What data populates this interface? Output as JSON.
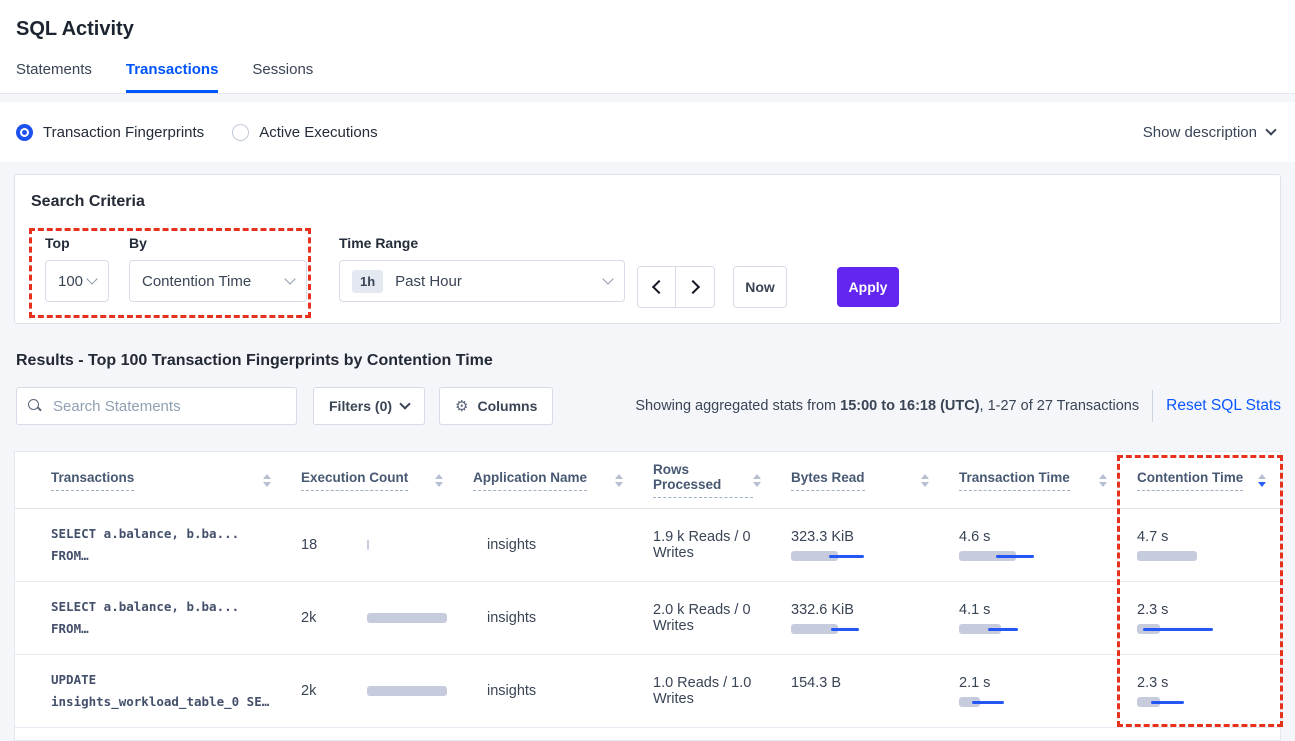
{
  "page_title": "SQL Activity",
  "tabs": [
    {
      "label": "Statements",
      "active": false
    },
    {
      "label": "Transactions",
      "active": true
    },
    {
      "label": "Sessions",
      "active": false
    }
  ],
  "view_toggle": {
    "options": [
      {
        "label": "Transaction Fingerprints",
        "selected": true
      },
      {
        "label": "Active Executions",
        "selected": false
      }
    ],
    "show_description_label": "Show description"
  },
  "search_criteria": {
    "heading": "Search Criteria",
    "top": {
      "label": "Top",
      "value": "100"
    },
    "by": {
      "label": "By",
      "value": "Contention Time"
    },
    "time_range": {
      "label": "Time Range",
      "badge": "1h",
      "value": "Past Hour"
    },
    "now_label": "Now",
    "apply_label": "Apply"
  },
  "results": {
    "heading": "Results - Top 100 Transaction Fingerprints by Contention Time",
    "search_placeholder": "Search Statements",
    "filters_label": "Filters (0)",
    "columns_label": "Columns",
    "stats_prefix": "Showing aggregated stats from ",
    "stats_range": "15:00 to 16:18 (UTC)",
    "stats_suffix": ", 1-27 of 27 Transactions",
    "reset_label": "Reset SQL Stats"
  },
  "table": {
    "columns": [
      "Transactions",
      "Execution Count",
      "Application Name",
      "Rows Processed",
      "Bytes Read",
      "Transaction Time",
      "Contention Time"
    ],
    "sorted_column": "Contention Time",
    "sort_direction": "desc",
    "rows": [
      {
        "query_line1": "SELECT a.balance, b.ba...",
        "query_line2": "FROM…",
        "execution_count": "18",
        "execution_bar": {
          "pct": 2
        },
        "application_name": "insights",
        "rows_processed": "1.9 k Reads / 0 Writes",
        "bytes_read": "323.3 KiB",
        "bytes_bar": {
          "pct": 62,
          "line": [
            50,
            96
          ]
        },
        "transaction_time": "4.6 s",
        "transaction_bar": {
          "pct": 71,
          "line": [
            46,
            94
          ]
        },
        "contention_time": "4.7 s",
        "contention_bar": {
          "pct": 77
        }
      },
      {
        "query_line1": "SELECT a.balance, b.ba...",
        "query_line2": "FROM…",
        "execution_count": "2k",
        "execution_bar": {
          "pct": 100
        },
        "application_name": "insights",
        "rows_processed": "2.0 k Reads / 0 Writes",
        "bytes_read": "332.6 KiB",
        "bytes_bar": {
          "pct": 62,
          "line": [
            53,
            90
          ]
        },
        "transaction_time": "4.1 s",
        "transaction_bar": {
          "pct": 52,
          "line": [
            36,
            74
          ]
        },
        "contention_time": "2.3 s",
        "contention_bar": {
          "pct": 30,
          "line": [
            8,
            98
          ]
        }
      },
      {
        "query_line1": "UPDATE",
        "query_line2": "insights_workload_table_0 SE…",
        "execution_count": "2k",
        "execution_bar": {
          "pct": 100
        },
        "application_name": "insights",
        "rows_processed": "1.0 Reads / 1.0 Writes",
        "bytes_read": "154.3 B",
        "bytes_bar": {
          "pct": 0
        },
        "transaction_time": "2.1 s",
        "transaction_bar": {
          "pct": 26,
          "line": [
            16,
            56
          ]
        },
        "contention_time": "2.3 s",
        "contention_bar": {
          "pct": 30,
          "line": [
            18,
            60
          ]
        }
      }
    ]
  },
  "colors": {
    "accent_blue": "#0055ff",
    "apply_purple": "#6226f0",
    "bar_gray": "#c6cbdd",
    "bar_line_blue": "#2457f5",
    "highlight_red": "#e8311c"
  }
}
